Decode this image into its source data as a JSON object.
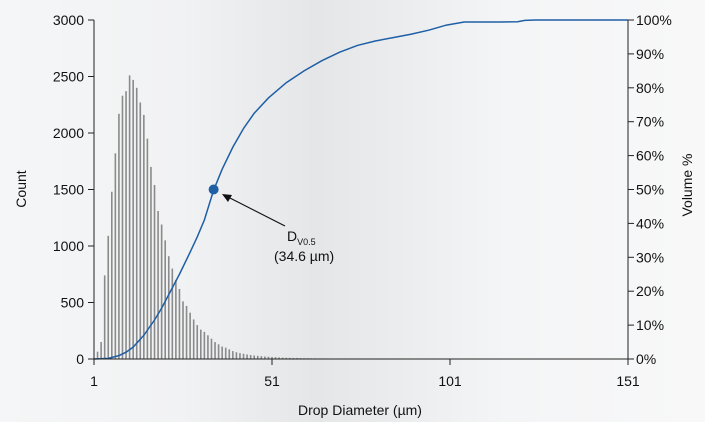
{
  "chart_data": {
    "type": "bar",
    "title": "",
    "xlabel": "Drop Diameter (µm)",
    "ylabel": "Count",
    "y2label": "Volume %",
    "xlim": [
      1,
      151
    ],
    "ylim": [
      0,
      3000
    ],
    "y2lim": [
      0,
      100
    ],
    "grid": false,
    "x_ticks": [
      "1",
      "51",
      "101",
      "151"
    ],
    "y_ticks": [
      "0",
      "500",
      "1000",
      "1500",
      "2000",
      "2500",
      "3000"
    ],
    "y2_ticks": [
      "0%",
      "10%",
      "20%",
      "30%",
      "40%",
      "50%",
      "60%",
      "70%",
      "80%",
      "90%",
      "100%"
    ],
    "series": [
      {
        "chart_type": "bar",
        "axis": "left",
        "color": "#8a8a8a",
        "x": [
          2,
          3,
          4,
          5,
          6,
          7,
          8,
          9,
          10,
          11,
          12,
          13,
          14,
          15,
          16,
          17,
          18,
          19,
          20,
          21,
          22,
          23,
          24,
          25,
          26,
          27,
          28,
          29,
          30,
          31,
          32,
          33,
          34,
          35,
          36,
          37,
          38,
          39,
          40,
          41,
          42,
          43,
          44,
          45,
          46,
          47,
          48,
          49,
          50,
          51,
          52,
          53,
          54,
          55,
          56,
          57,
          58,
          59,
          60,
          61,
          62,
          63,
          64,
          65,
          66,
          67,
          68,
          69,
          70,
          71,
          72,
          73,
          74,
          75,
          76,
          77,
          78,
          79,
          80,
          81,
          82,
          83,
          84,
          85,
          86,
          87,
          88,
          89,
          90,
          91,
          92,
          93,
          94,
          95,
          96,
          97,
          98,
          99,
          100,
          101,
          102,
          103,
          104,
          105,
          106,
          107,
          108,
          109,
          110,
          111,
          112,
          113,
          114,
          115,
          116,
          117,
          118,
          119,
          120
        ],
        "values": [
          65,
          150,
          740,
          1090,
          1480,
          1820,
          2170,
          2330,
          2370,
          2510,
          2470,
          2400,
          2270,
          2160,
          1950,
          1700,
          1540,
          1310,
          1190,
          1050,
          910,
          800,
          700,
          620,
          510,
          470,
          410,
          350,
          300,
          260,
          240,
          210,
          180,
          150,
          130,
          110,
          100,
          85,
          70,
          60,
          52,
          46,
          40,
          35,
          31,
          28,
          25,
          22,
          20,
          18,
          16,
          14,
          12,
          11,
          10,
          9,
          9,
          8,
          7,
          7,
          6,
          6,
          5,
          5,
          5,
          4,
          4,
          4,
          3,
          3,
          3,
          3,
          3,
          2,
          2,
          2,
          2,
          2,
          2,
          2,
          2,
          2,
          2,
          2,
          2,
          2,
          1,
          1,
          1,
          1,
          1,
          1,
          1,
          1,
          1,
          1,
          1,
          1,
          1,
          1,
          1,
          1,
          1,
          1,
          1,
          1,
          1,
          1,
          1,
          1,
          1,
          1,
          1,
          1,
          1,
          1,
          1,
          1,
          1
        ]
      },
      {
        "chart_type": "line",
        "axis": "right",
        "color": "#1f5fa6",
        "x": [
          1,
          5,
          8,
          10,
          12,
          15,
          18,
          20,
          22,
          25,
          28,
          30,
          32,
          34.6,
          37,
          40,
          43,
          46,
          50,
          55,
          60,
          65,
          70,
          75,
          80,
          85,
          90,
          95,
          100,
          105,
          110,
          115,
          120,
          122,
          125,
          130,
          135,
          140,
          145,
          151
        ],
        "values": [
          0,
          0.2,
          1,
          2,
          3.5,
          7,
          11.5,
          15,
          19,
          25,
          31.5,
          36,
          41,
          49.8,
          56,
          62.5,
          68,
          72.5,
          77,
          81.5,
          85,
          88,
          90.5,
          92.5,
          93.8,
          94.8,
          95.8,
          97,
          98.5,
          99.4,
          99.4,
          99.4,
          99.5,
          99.9,
          100,
          100,
          100,
          100,
          100,
          100
        ]
      }
    ],
    "marker": {
      "x": 34.6,
      "y2": 50,
      "color": "#1f5fa6"
    },
    "annotation": {
      "symbol": "D",
      "subscript": "V0.5",
      "value_text": "(34.6 µm)"
    }
  }
}
